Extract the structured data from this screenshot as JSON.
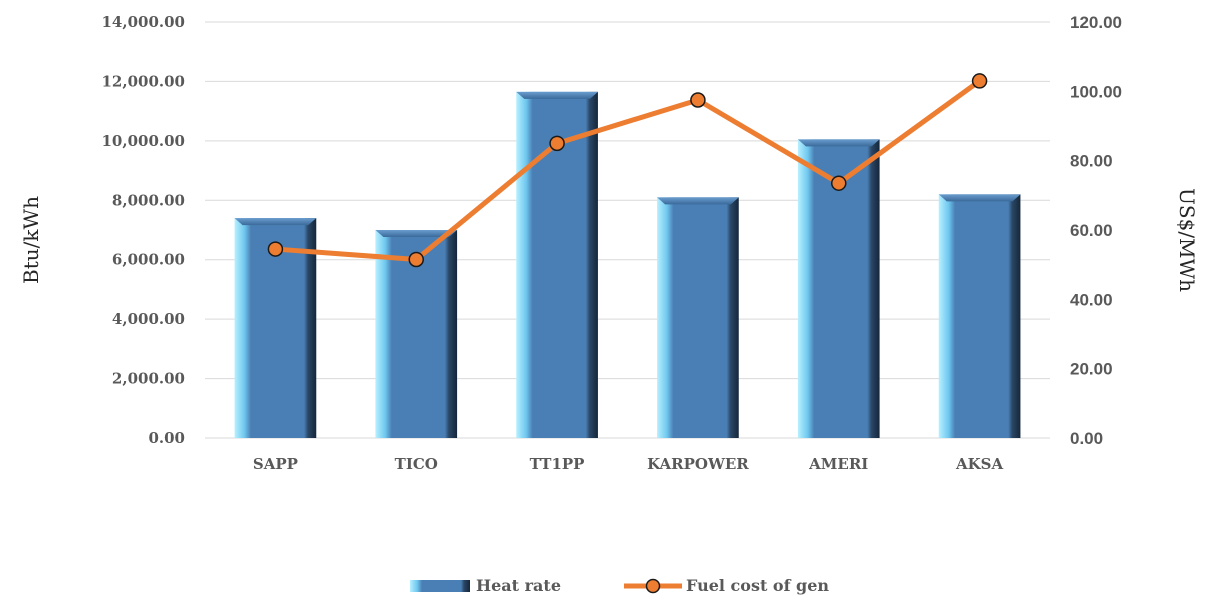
{
  "chart_data": {
    "type": "bar",
    "categories": [
      "SAPP",
      "TICO",
      "TT1PP",
      "KARPOWER",
      "AMERI",
      "AKSA"
    ],
    "series": [
      {
        "name": "Heat rate",
        "type": "bar",
        "axis": "left",
        "color": "#4a7fb5",
        "values": [
          7400,
          7000,
          11650,
          8100,
          10050,
          8200
        ]
      },
      {
        "name": "Fuel cost of gen",
        "type": "line",
        "axis": "right",
        "color": "#ed7d31",
        "values": [
          54.5,
          51.5,
          85.0,
          97.5,
          73.5,
          103.0
        ]
      }
    ],
    "ylabel": "Btu/kWh",
    "y2label": "US$/MWh",
    "ylim": [
      0,
      14000
    ],
    "y2lim": [
      0,
      120
    ],
    "yticks": [
      "0.00",
      "2,000.00",
      "4,000.00",
      "6,000.00",
      "8,000.00",
      "10,000.00",
      "12,000.00",
      "14,000.00"
    ],
    "y2ticks": [
      "0.00",
      "20.00",
      "40.00",
      "60.00",
      "80.00",
      "100.00",
      "120.00"
    ],
    "grid": true,
    "legend": "bottom"
  }
}
